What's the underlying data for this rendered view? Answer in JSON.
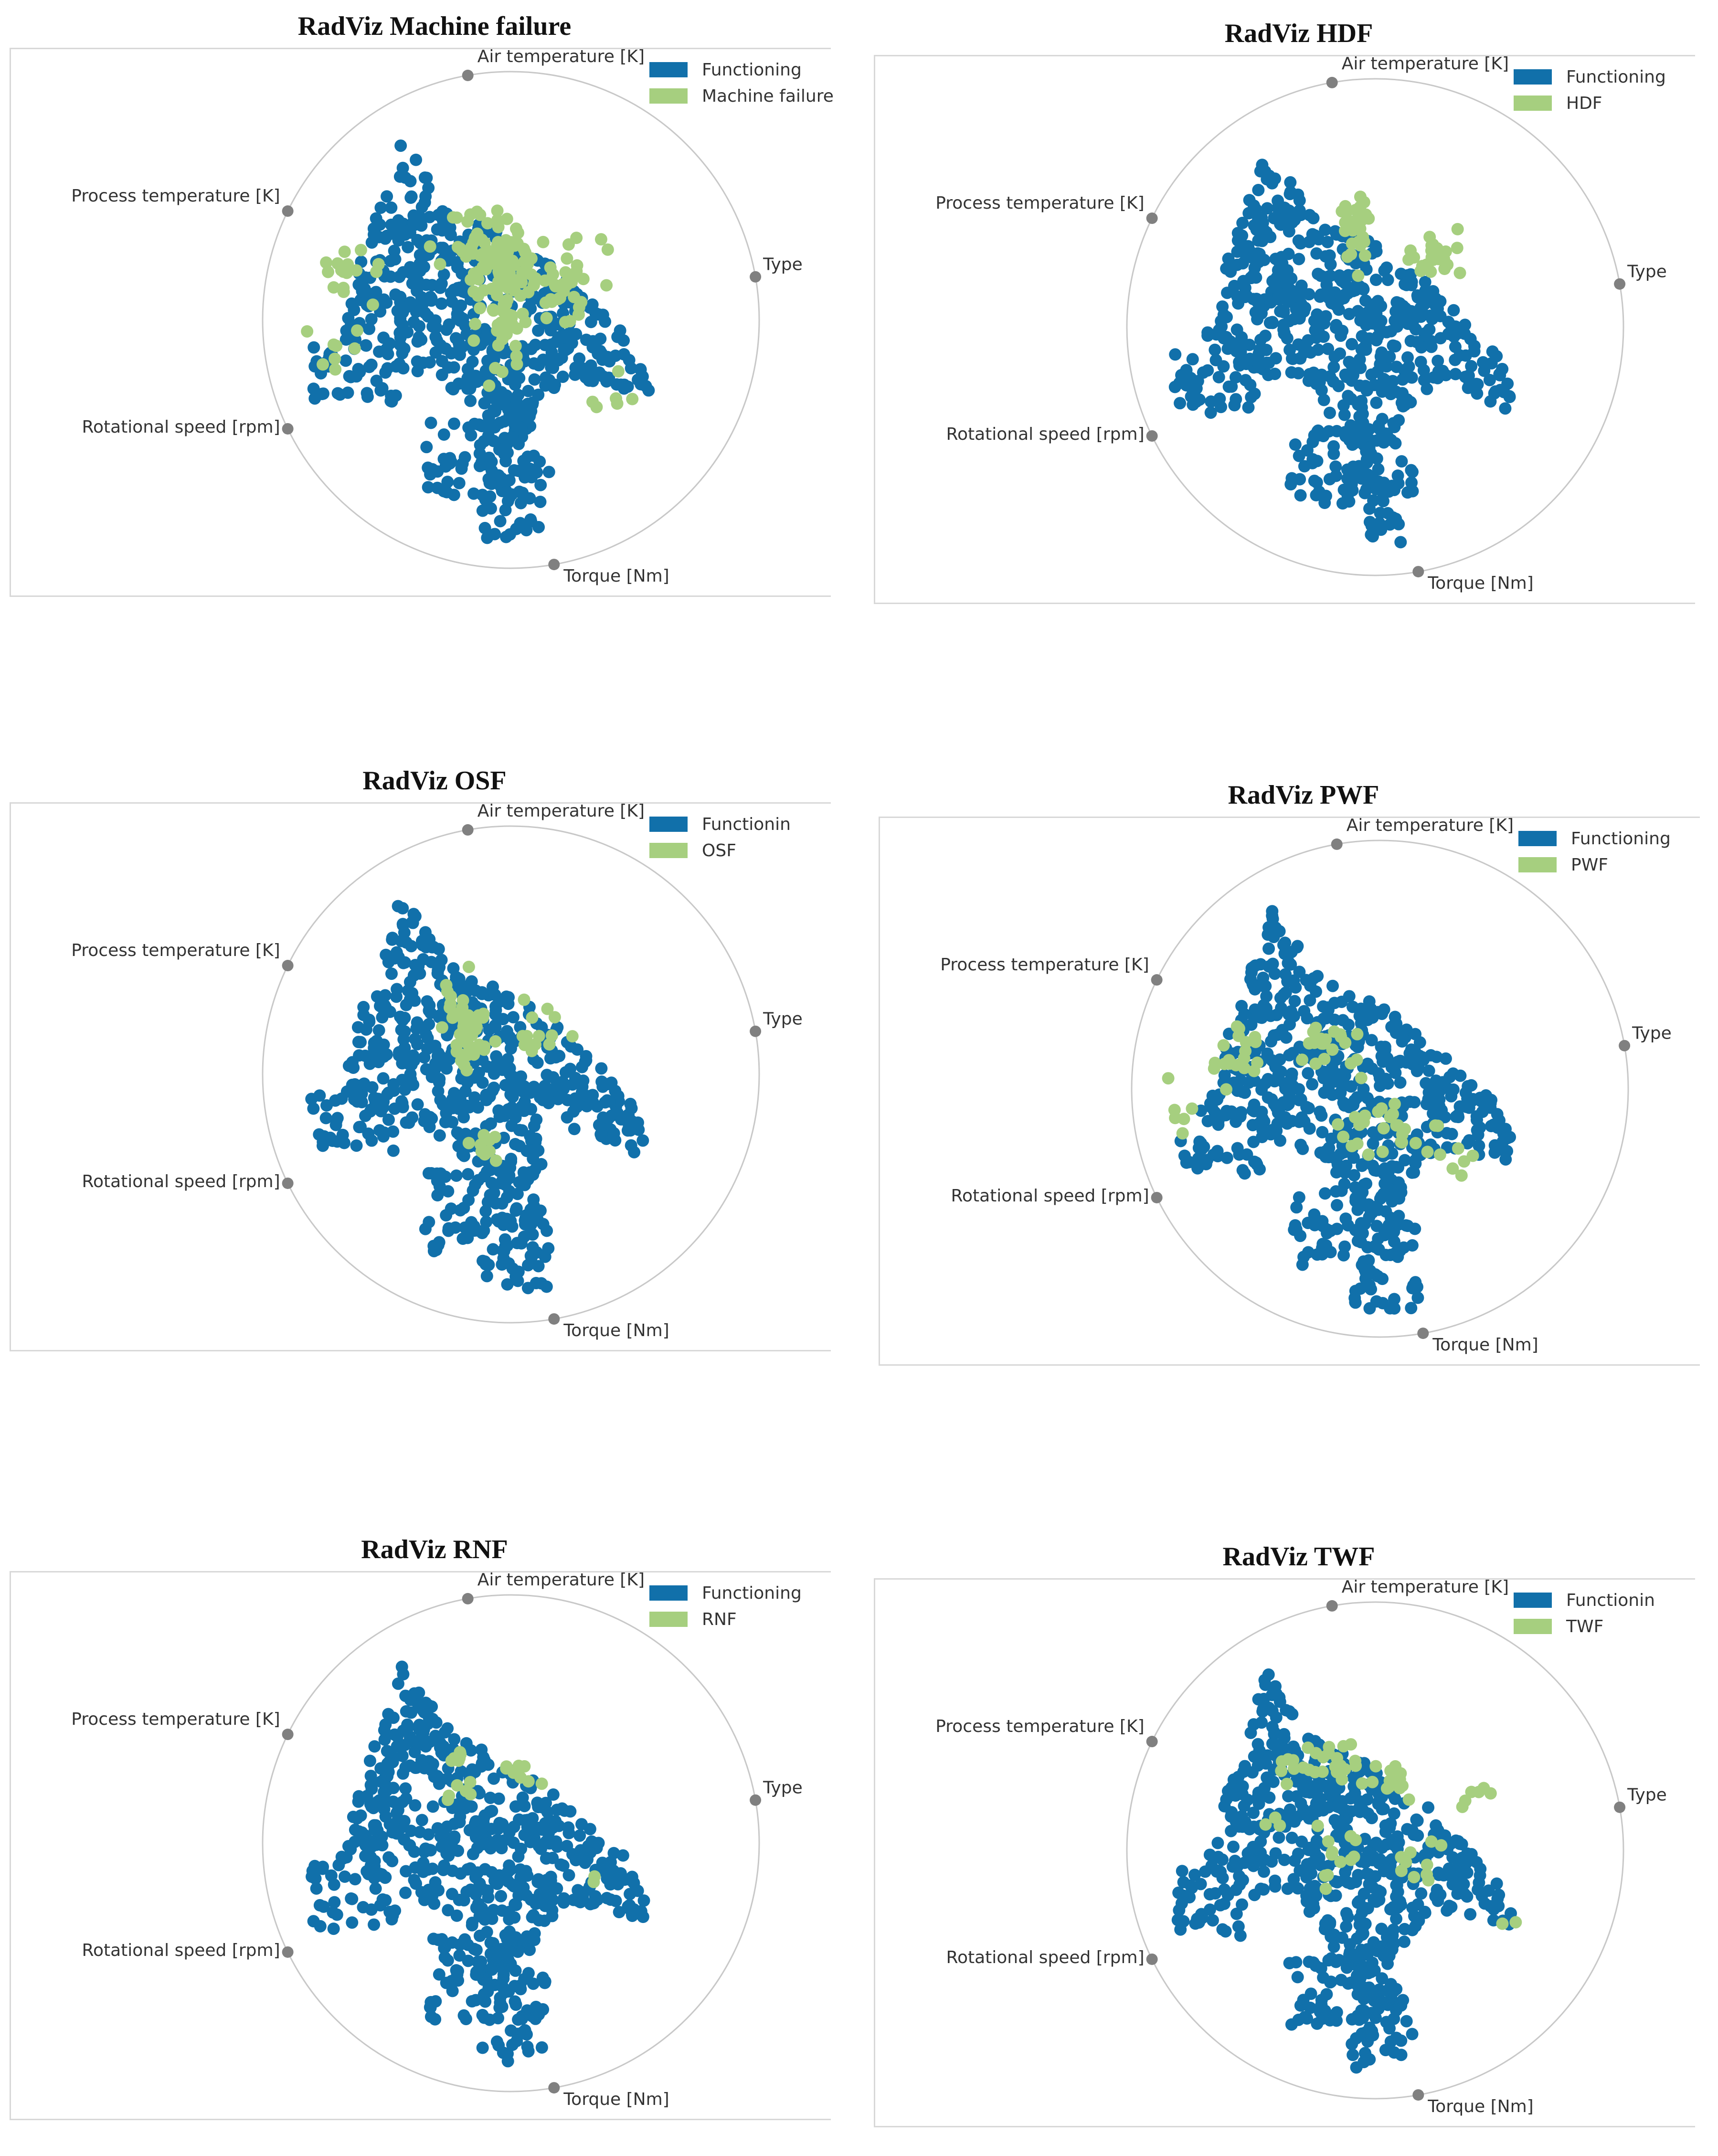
{
  "colors": {
    "functioning": "#1170aa",
    "failure": "#a6cf7f",
    "anchor": "#808080",
    "circle": "#c8c8c8"
  },
  "anchors": [
    "Air temperature [K]",
    "Type",
    "Torque [Nm]",
    "Rotational speed [rpm]",
    "Process temperature [K]"
  ],
  "chart_data": [
    {
      "type": "scatter",
      "subtype": "radviz",
      "title": "RadViz Machine failure",
      "legend": {
        "placement": "top-right",
        "entries": [
          "Functioning",
          "Machine failure"
        ]
      },
      "anchors": [
        "Air temperature [K]",
        "Type",
        "Torque [Nm]",
        "Rotational speed [rpm]",
        "Process temperature [K]"
      ],
      "series": [
        {
          "name": "Functioning"
        },
        {
          "name": "Machine failure"
        }
      ]
    },
    {
      "type": "scatter",
      "subtype": "radviz",
      "title": "RadViz HDF",
      "legend": {
        "placement": "top-right",
        "entries": [
          "Functioning",
          "HDF"
        ]
      },
      "anchors": [
        "Air temperature [K]",
        "Type",
        "Torque [Nm]",
        "Rotational speed [rpm]",
        "Process temperature [K]"
      ],
      "series": [
        {
          "name": "Functioning"
        },
        {
          "name": "HDF"
        }
      ]
    },
    {
      "type": "scatter",
      "subtype": "radviz",
      "title": "RadViz OSF",
      "legend": {
        "placement": "top-right",
        "entries": [
          "Functionin",
          "OSF"
        ]
      },
      "anchors": [
        "Air temperature [K]",
        "Type",
        "Torque [Nm]",
        "Rotational speed [rpm]",
        "Process temperature [K]"
      ],
      "series": [
        {
          "name": "Functioning"
        },
        {
          "name": "OSF"
        }
      ]
    },
    {
      "type": "scatter",
      "subtype": "radviz",
      "title": "RadViz PWF",
      "legend": {
        "placement": "top-right",
        "entries": [
          "Functioning",
          "PWF"
        ]
      },
      "anchors": [
        "Air temperature [K]",
        "Type",
        "Torque [Nm]",
        "Rotational speed [rpm]",
        "Process temperature [K]"
      ],
      "series": [
        {
          "name": "Functioning"
        },
        {
          "name": "PWF"
        }
      ]
    },
    {
      "type": "scatter",
      "subtype": "radviz",
      "title": "RadViz RNF",
      "legend": {
        "placement": "top-right",
        "entries": [
          "Functioning",
          "RNF"
        ]
      },
      "anchors": [
        "Air temperature [K]",
        "Type",
        "Torque [Nm]",
        "Rotational speed [rpm]",
        "Process temperature [K]"
      ],
      "series": [
        {
          "name": "Functioning"
        },
        {
          "name": "RNF"
        }
      ]
    },
    {
      "type": "scatter",
      "subtype": "radviz",
      "title": "RadViz TWF",
      "legend": {
        "placement": "top-right",
        "entries": [
          "Functionin",
          "TWF"
        ]
      },
      "anchors": [
        "Air temperature [K]",
        "Type",
        "Torque [Nm]",
        "Rotational speed [rpm]",
        "Process temperature [K]"
      ],
      "series": [
        {
          "name": "Functioning"
        },
        {
          "name": "TWF"
        }
      ]
    }
  ]
}
